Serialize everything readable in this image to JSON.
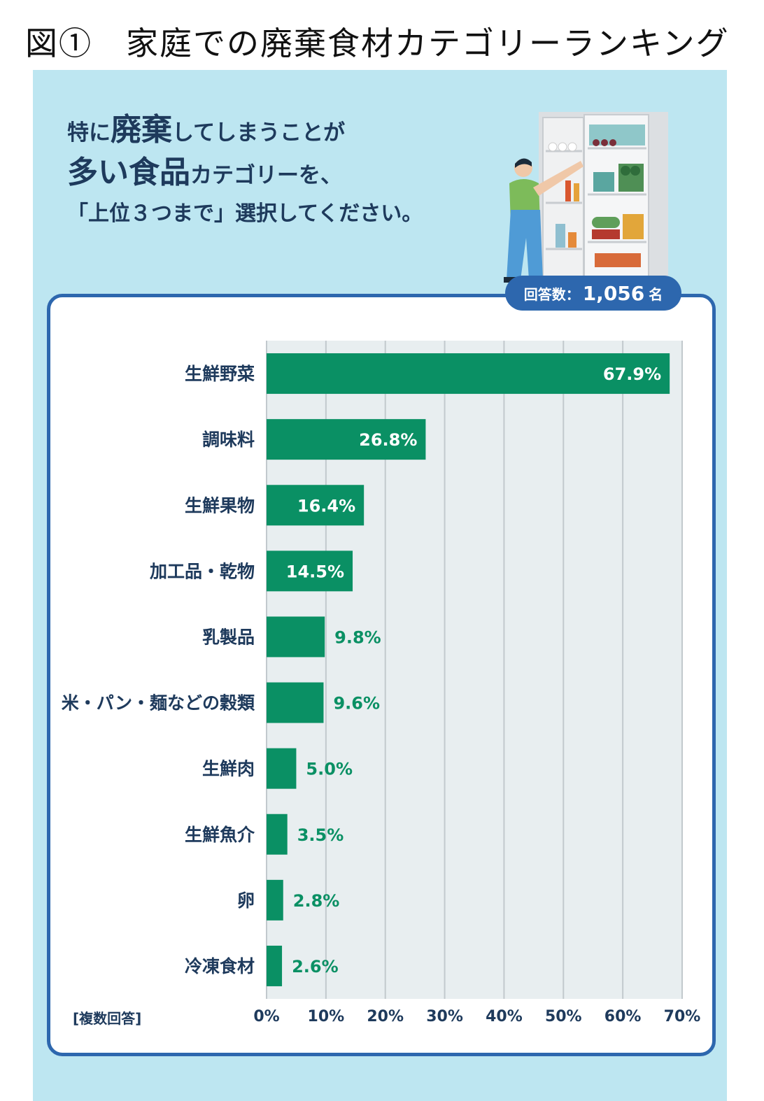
{
  "figure_title": "図①　家庭での廃棄食材カテゴリーランキング",
  "question": {
    "line1_pre": "特に",
    "line1_em": "廃棄",
    "line1_post": "してしまうことが",
    "line2_em": "多い食品",
    "line2_post": "カテゴリーを、",
    "line3": "「上位３つまで」選択してください。"
  },
  "respondents": {
    "label": "回答数：",
    "value": "1,056",
    "unit": "名"
  },
  "note": "[複数回答]",
  "colors": {
    "bar": "#0a9064",
    "label_dark": "#1e3a5c",
    "plot_bg": "#e8eef0",
    "accent_blue": "#2d67ae"
  },
  "chart_data": {
    "type": "bar",
    "orientation": "horizontal",
    "categories": [
      "生鮮野菜",
      "調味料",
      "生鮮果物",
      "加工品・乾物",
      "乳製品",
      "米・パン・麺などの穀類",
      "生鮮肉",
      "生鮮魚介",
      "卵",
      "冷凍食材"
    ],
    "values": [
      67.9,
      26.8,
      16.4,
      14.5,
      9.8,
      9.6,
      5.0,
      3.5,
      2.8,
      2.6
    ],
    "value_labels": [
      "67.9%",
      "26.8%",
      "16.4%",
      "14.5%",
      "9.8%",
      "9.6%",
      "5.0%",
      "3.5%",
      "2.8%",
      "2.6%"
    ],
    "xlim": [
      0,
      70
    ],
    "xticks": [
      "0%",
      "10%",
      "20%",
      "30%",
      "40%",
      "50%",
      "60%",
      "70%"
    ],
    "grid": true
  }
}
